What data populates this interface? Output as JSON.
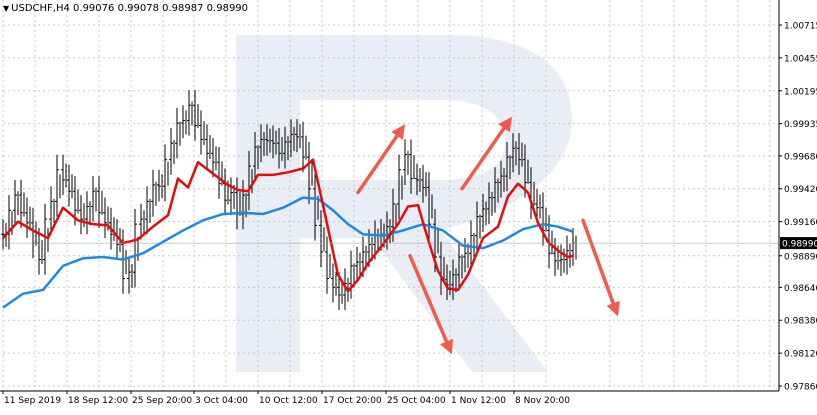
{
  "header": {
    "collapse_icon": "triangle-down-icon",
    "symbol": "USDCHF,H4",
    "open": "0.99076",
    "high": "0.99078",
    "low": "0.98987",
    "close": "0.98990"
  },
  "current_price_label": "0.98990",
  "colors": {
    "price_bars": "#000000",
    "ma_fast": "#e30b0b",
    "ma_slow": "#1e88e5",
    "arrows": "#f25a4a",
    "grid": "#c8c8c8",
    "watermark": "#e9edf5",
    "price_tag_bg": "#000000",
    "price_tag_text": "#ffffff"
  },
  "chart_data": {
    "type": "line",
    "title": "USDCHF,H4",
    "y_ticks": [
      "1.00715",
      "1.00455",
      "1.00195",
      "0.99935",
      "0.99680",
      "0.99420",
      "0.99160",
      "0.98890",
      "0.98640",
      "0.98380",
      "0.98120",
      "0.97860"
    ],
    "x_ticks": [
      "11 Sep 2019",
      "18 Sep 12:00",
      "25 Sep 20:00",
      "3 Oct 04:00",
      "10 Oct 12:00",
      "17 Oct 20:00",
      "25 Oct 04:00",
      "1 Nov 12:00",
      "8 Nov 20:00"
    ],
    "ylim": [
      0.9786,
      1.0084
    ],
    "grid": true,
    "series": [
      {
        "role": "price",
        "x": [
          0,
          6,
          12,
          18,
          24,
          30,
          36,
          42,
          48,
          54,
          60,
          66,
          72,
          78,
          84,
          90,
          96,
          102,
          108,
          114,
          120,
          126,
          132,
          138,
          144,
          150,
          156,
          162,
          168,
          174,
          180,
          186,
          192,
          198,
          204,
          210,
          216,
          222,
          228,
          234,
          240,
          246,
          252,
          258,
          264,
          270,
          276,
          282,
          288,
          294,
          300,
          306,
          312,
          318,
          324,
          330,
          336,
          342,
          348,
          354,
          360,
          366,
          372,
          378,
          384,
          390,
          396,
          402,
          408,
          414,
          420,
          426,
          432,
          438,
          444,
          450,
          456,
          462,
          468,
          474,
          480,
          486,
          492,
          498,
          504,
          510,
          516,
          522,
          528,
          534,
          540,
          546,
          552,
          558,
          564,
          570
        ],
        "values": [
          0.9906,
          0.9925,
          0.9937,
          0.9923,
          0.9915,
          0.9899,
          0.9886,
          0.9918,
          0.9932,
          0.9957,
          0.9949,
          0.994,
          0.9925,
          0.9918,
          0.9928,
          0.994,
          0.9923,
          0.9915,
          0.9906,
          0.9898,
          0.9871,
          0.9876,
          0.9914,
          0.9918,
          0.9932,
          0.9945,
          0.9944,
          0.9965,
          0.9978,
          0.9994,
          0.9996,
          1.0008,
          0.9992,
          0.9981,
          0.997,
          0.9963,
          0.9946,
          0.9933,
          0.9939,
          0.9922,
          0.9937,
          0.996,
          0.9975,
          0.9981,
          0.998,
          0.9978,
          0.997,
          0.9979,
          0.9985,
          0.9983,
          0.9967,
          0.9942,
          0.9913,
          0.9892,
          0.9871,
          0.9864,
          0.9858,
          0.9867,
          0.9881,
          0.9884,
          0.9892,
          0.9898,
          0.9905,
          0.9906,
          0.9912,
          0.993,
          0.9957,
          0.9969,
          0.995,
          0.9949,
          0.9943,
          0.9914,
          0.9888,
          0.987,
          0.9866,
          0.9874,
          0.9888,
          0.9891,
          0.9905,
          0.992,
          0.9926,
          0.9935,
          0.9947,
          0.9952,
          0.9967,
          0.9974,
          0.9965,
          0.9947,
          0.993,
          0.9927,
          0.9909,
          0.9891,
          0.9885,
          0.9886,
          0.9893,
          0.9899
        ]
      },
      {
        "role": "ma_fast",
        "x": [
          0,
          15,
          30,
          45,
          60,
          75,
          90,
          105,
          120,
          135,
          150,
          165,
          175,
          185,
          195,
          210,
          225,
          235,
          245,
          255,
          270,
          285,
          300,
          310,
          320,
          335,
          345,
          355,
          365,
          380,
          395,
          405,
          415,
          425,
          435,
          445,
          455,
          465,
          480,
          495,
          505,
          515,
          525,
          535,
          545,
          555,
          565,
          570
        ],
        "values": [
          0.9903,
          0.9916,
          0.9909,
          0.9903,
          0.9927,
          0.9917,
          0.9914,
          0.9913,
          0.9899,
          0.9902,
          0.9912,
          0.9921,
          0.995,
          0.9943,
          0.9963,
          0.9954,
          0.9945,
          0.9941,
          0.994,
          0.9953,
          0.9953,
          0.9955,
          0.9958,
          0.9965,
          0.9929,
          0.9874,
          0.9861,
          0.987,
          0.9883,
          0.9898,
          0.9914,
          0.9928,
          0.9929,
          0.9902,
          0.9877,
          0.9863,
          0.9862,
          0.9874,
          0.9903,
          0.9912,
          0.9936,
          0.9946,
          0.9939,
          0.9915,
          0.99,
          0.9893,
          0.9888,
          0.9889
        ]
      },
      {
        "role": "ma_slow",
        "x": [
          0,
          20,
          40,
          60,
          80,
          100,
          120,
          140,
          160,
          180,
          200,
          220,
          240,
          260,
          280,
          300,
          315,
          330,
          345,
          360,
          380,
          400,
          420,
          440,
          460,
          480,
          500,
          520,
          540,
          555,
          570
        ],
        "values": [
          0.9848,
          0.9859,
          0.9862,
          0.9881,
          0.9887,
          0.9888,
          0.9886,
          0.9891,
          0.99,
          0.9909,
          0.9917,
          0.9922,
          0.9923,
          0.9922,
          0.9927,
          0.9935,
          0.9934,
          0.9925,
          0.9914,
          0.9906,
          0.9905,
          0.9909,
          0.9914,
          0.9909,
          0.9897,
          0.9895,
          0.9901,
          0.991,
          0.9914,
          0.9912,
          0.9908
        ]
      }
    ],
    "annotation_arrows": [
      {
        "direction": "up",
        "from_x": 358,
        "from_y": 0.9939,
        "to_x": 405,
        "to_y": 0.9993
      },
      {
        "direction": "down",
        "from_x": 410,
        "from_y": 0.9889,
        "to_x": 452,
        "to_y": 0.9811
      },
      {
        "direction": "up",
        "from_x": 462,
        "from_y": 0.9942,
        "to_x": 512,
        "to_y": 0.9999
      },
      {
        "direction": "down",
        "from_x": 583,
        "from_y": 0.9917,
        "to_x": 618,
        "to_y": 0.9841
      }
    ]
  }
}
